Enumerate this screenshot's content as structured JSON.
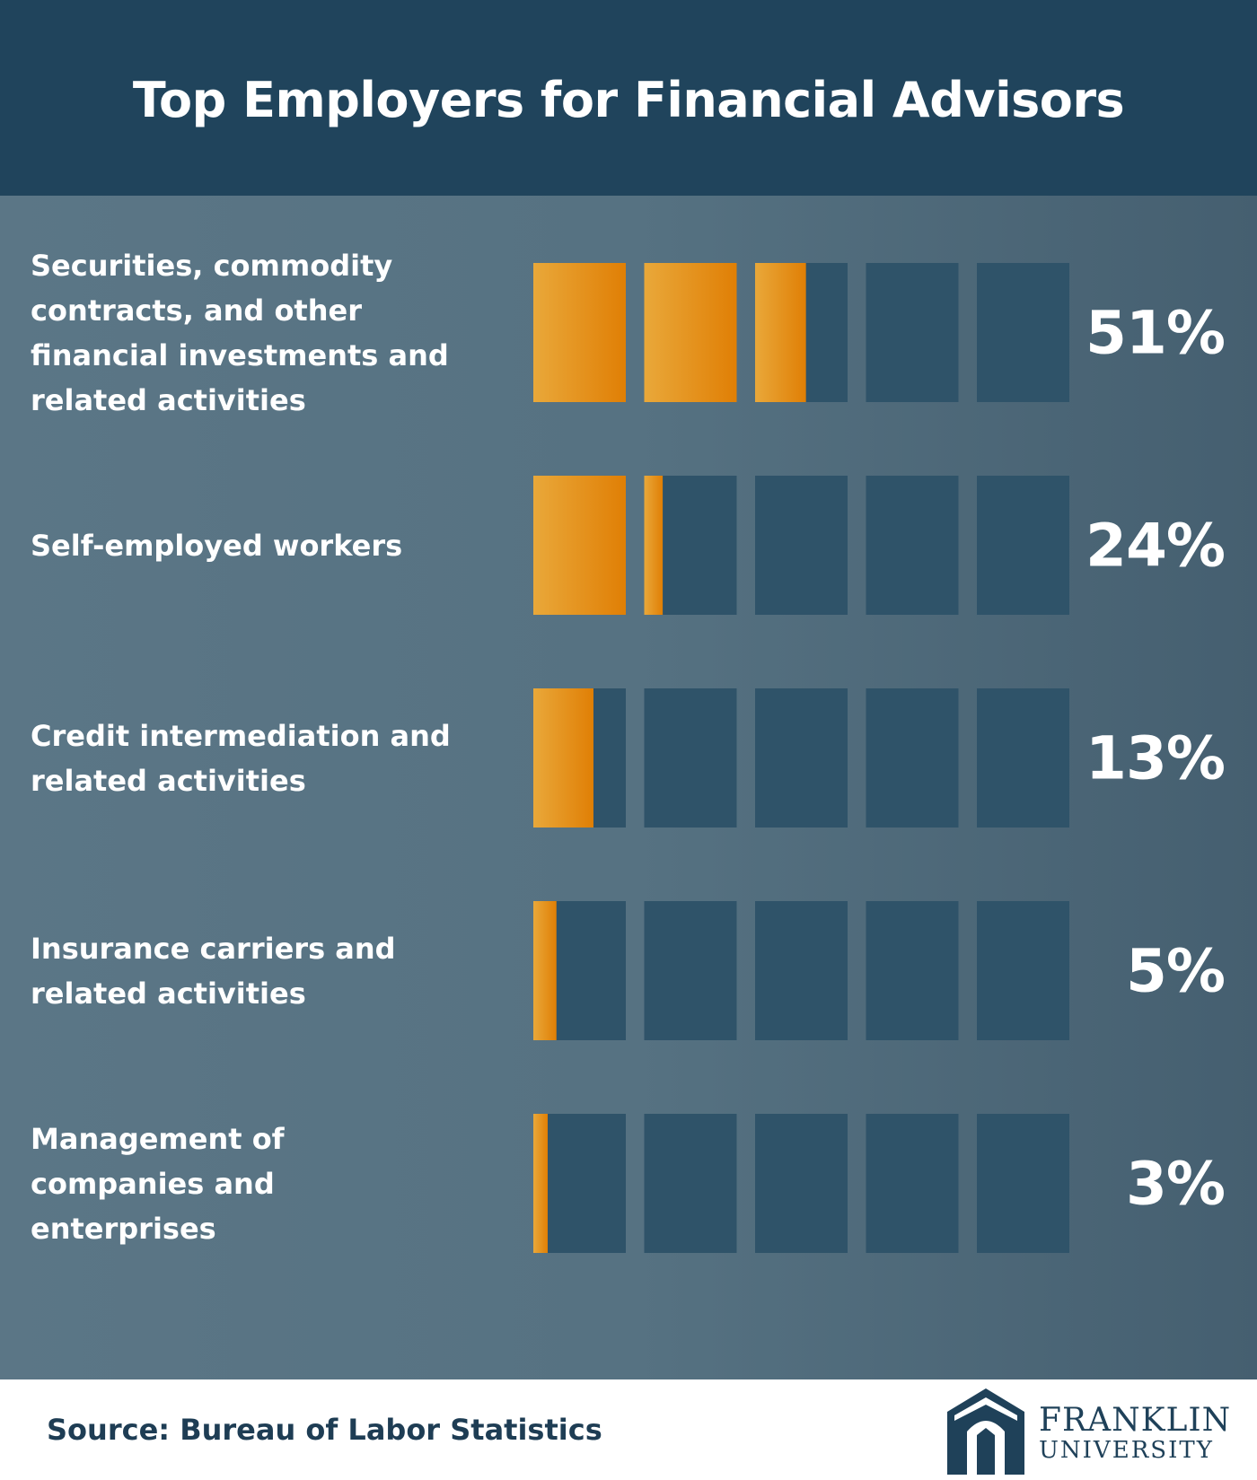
{
  "title": "Top Employers for Financial Advisors",
  "colors": {
    "header_bg": "#20445c",
    "box_bg": "#2f5369",
    "fill_light": "#e9a83a",
    "fill_dark": "#e07f05",
    "text": "#ffffff"
  },
  "chart_data": {
    "type": "bar",
    "categories": [
      "Securities, commodity contracts, and other financial investments and related activities",
      "Self-employed workers",
      "Credit intermediation and related activities",
      "Insurance carriers and related activities",
      "Management of companies and enterprises"
    ],
    "values": [
      51,
      24,
      13,
      5,
      3
    ],
    "value_labels": [
      "51%",
      "24%",
      "13%",
      "5%",
      "3%"
    ],
    "unit": "%",
    "ylim": [
      0,
      100
    ],
    "boxes_per_row": 5,
    "title": "Top Employers for Financial Advisors"
  },
  "footer": {
    "source": "Source: Bureau of Labor Statistics",
    "logo_line1": "FRANKLIN",
    "logo_line2": "UNIVERSITY"
  }
}
